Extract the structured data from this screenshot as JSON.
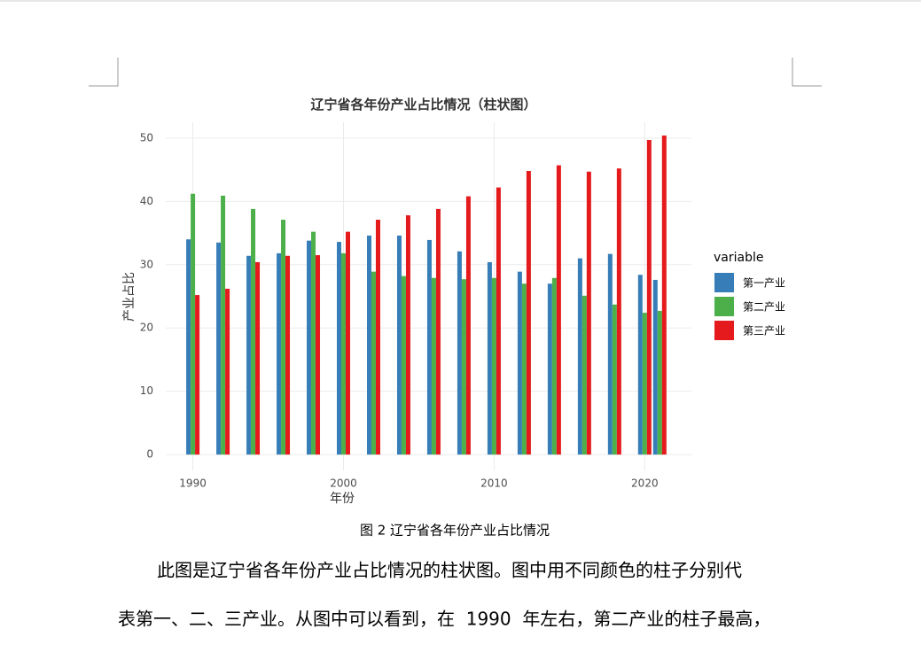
{
  "document": {
    "caption": "图 2 辽宁省各年份产业占比情况",
    "paragraph_lines": [
      "此图是辽宁省各年份产业占比情况的柱状图。图中用不同颜色的柱子分别代",
      "表第一、二、三产业。从图中可以看到，在  1990  年左右，第二产业的柱子最高，"
    ]
  },
  "chart_data": {
    "type": "bar",
    "title": "辽宁省各年份产业占比情况（柱状图）",
    "x_label": "年份",
    "y_label": "产业占比",
    "legend_title": "variable",
    "legend_position": "right",
    "grid": true,
    "x": [
      1990,
      1992,
      1994,
      1996,
      1998,
      2000,
      2002,
      2004,
      2006,
      2008,
      2010,
      2012,
      2014,
      2016,
      2018,
      2020,
      2021
    ],
    "series": [
      {
        "name": "第一产业",
        "color": "#377eb8",
        "values": [
          34.0,
          33.5,
          31.4,
          31.8,
          33.8,
          33.6,
          34.6,
          34.6,
          33.9,
          32.1,
          30.4,
          28.9,
          27.0,
          31.0,
          31.7,
          28.4,
          27.6
        ]
      },
      {
        "name": "第二产业",
        "color": "#4daf4a",
        "values": [
          41.2,
          40.9,
          38.8,
          37.1,
          35.2,
          31.8,
          28.9,
          28.2,
          27.9,
          27.7,
          27.9,
          27.0,
          27.9,
          25.1,
          23.7,
          22.4,
          22.7
        ]
      },
      {
        "name": "第三产业",
        "color": "#e41a1c",
        "values": [
          25.2,
          26.2,
          30.4,
          31.4,
          31.5,
          35.2,
          37.1,
          37.8,
          38.8,
          40.8,
          42.2,
          44.8,
          45.7,
          44.7,
          45.2,
          49.7,
          50.4
        ]
      }
    ],
    "xlim": [
      1988.2,
      2023.1
    ],
    "xticks": [
      1990,
      2000,
      2010,
      2020
    ],
    "ylim": [
      -2.5,
      52.5
    ],
    "yticks": [
      0,
      10,
      20,
      30,
      40,
      50
    ]
  }
}
